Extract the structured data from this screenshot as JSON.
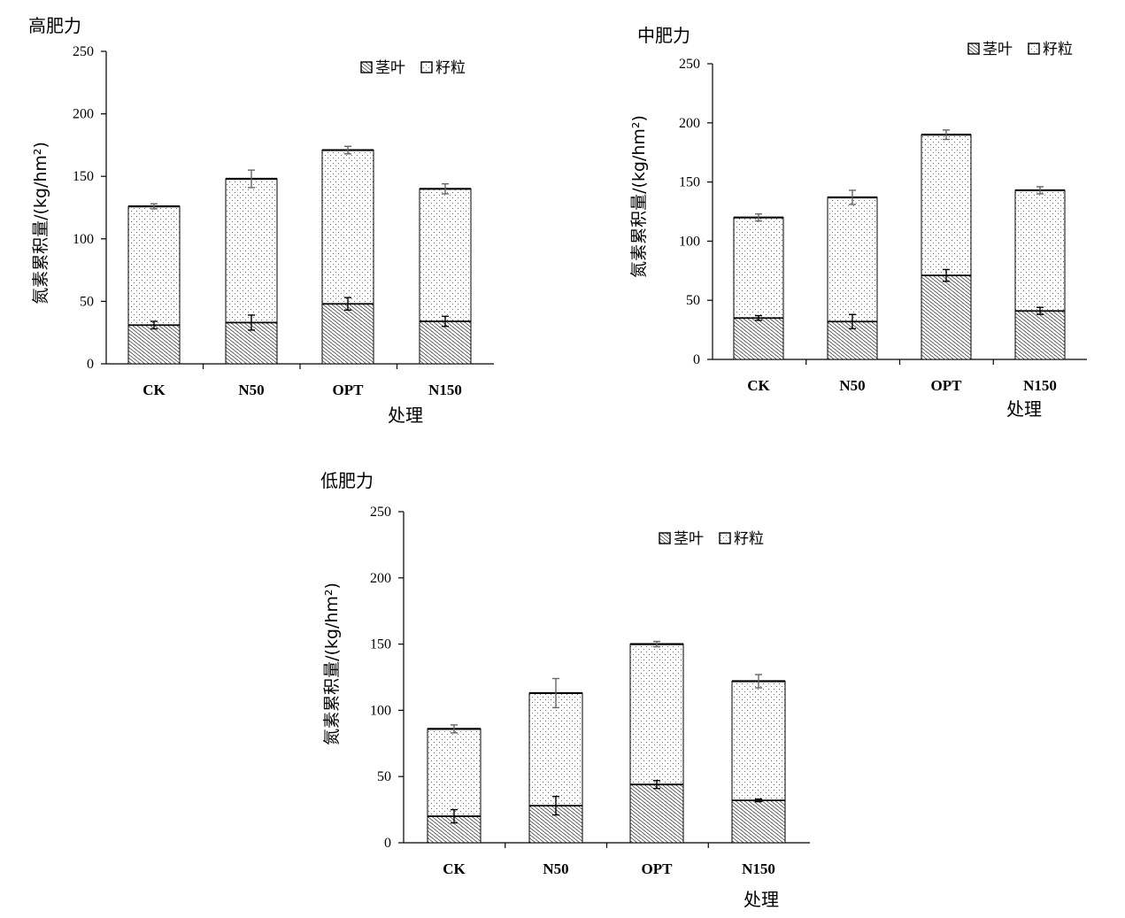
{
  "chart_data": [
    {
      "type": "bar",
      "stacked": true,
      "title": "高肥力",
      "xlabel": "处理",
      "ylabel": "氮素累积量/(kg/hm²)",
      "ylim": [
        0,
        250
      ],
      "yticks": [
        0,
        50,
        100,
        150,
        200,
        250
      ],
      "legend_position": "top-right",
      "categories": [
        "CK",
        "N50",
        "OPT",
        "N150"
      ],
      "series": [
        {
          "name": "茎叶",
          "values": [
            31,
            33,
            48,
            34
          ],
          "errors": [
            3,
            6,
            5,
            4
          ]
        },
        {
          "name": "籽粒",
          "values": [
            95,
            115,
            123,
            106
          ],
          "errors": [
            2,
            7,
            3,
            4
          ]
        }
      ]
    },
    {
      "type": "bar",
      "stacked": true,
      "title": "中肥力",
      "xlabel": "处理",
      "ylabel": "氮素累积量/(kg/hm²)",
      "ylim": [
        0,
        250
      ],
      "yticks": [
        0,
        50,
        100,
        150,
        200,
        250
      ],
      "legend_position": "top-right",
      "categories": [
        "CK",
        "N50",
        "OPT",
        "N150"
      ],
      "series": [
        {
          "name": "茎叶",
          "values": [
            35,
            32,
            71,
            41
          ],
          "errors": [
            2,
            6,
            5,
            3
          ]
        },
        {
          "name": "籽粒",
          "values": [
            85,
            105,
            119,
            102
          ],
          "errors": [
            3,
            6,
            4,
            3
          ]
        }
      ]
    },
    {
      "type": "bar",
      "stacked": true,
      "title": "低肥力",
      "xlabel": "处理",
      "ylabel": "氮素累积量/(kg/hm²)",
      "ylim": [
        0,
        250
      ],
      "yticks": [
        0,
        50,
        100,
        150,
        200,
        250
      ],
      "legend_position": "top-right",
      "categories": [
        "CK",
        "N50",
        "OPT",
        "N150"
      ],
      "series": [
        {
          "name": "茎叶",
          "values": [
            20,
            28,
            44,
            32
          ],
          "errors": [
            5,
            7,
            3,
            1
          ]
        },
        {
          "name": "籽粒",
          "values": [
            66,
            85,
            106,
            90
          ],
          "errors": [
            3,
            11,
            2,
            5
          ]
        }
      ]
    }
  ]
}
